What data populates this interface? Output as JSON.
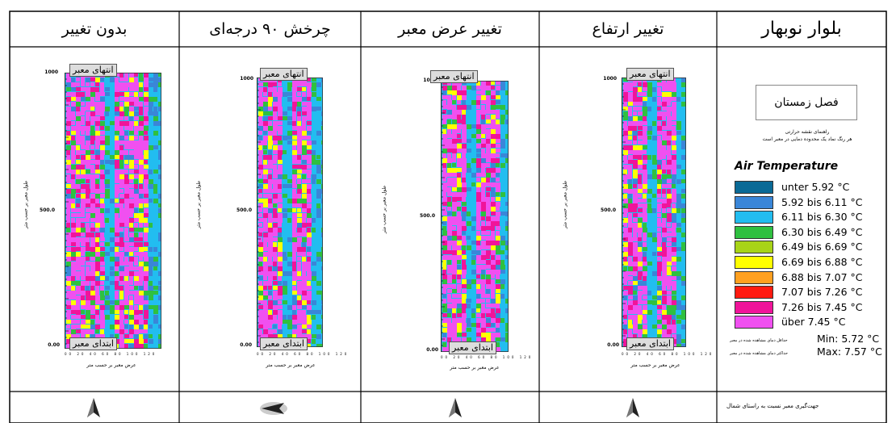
{
  "headers": {
    "street": "بلوار نوبهار",
    "height_change": "تغییر ارتفاع",
    "width_change": "تغییر عرض معبر",
    "rotation": "چرخش ۹۰ درجه‌ای",
    "no_change": "بدون تغییر"
  },
  "plot_labels": {
    "end_tag": "انتهای معبر",
    "start_tag": "ابتدای معبر",
    "x_axis_label": "عرض معبر بر حسب متر",
    "y_axis_label": "طول معبر بر حسب متر",
    "y_ticks": [
      "1000",
      "500.0",
      "0.00"
    ],
    "x_ticks": "00 20 40 60 80 100 120"
  },
  "legend": {
    "season": "فصل زمستان",
    "guide_title": "راهنمای نقشه حرارتی",
    "guide_desc": "هر رنگ نماد یک محدوده دمایی در معبر است",
    "title": "Air Temperature",
    "items": [
      {
        "label": "unter  5.92 °C",
        "color": "#0a6a96"
      },
      {
        "label": "5.92  bis  6.11 °C",
        "color": "#3a86d8"
      },
      {
        "label": "6.11  bis  6.30 °C",
        "color": "#22bdf0"
      },
      {
        "label": "6.30  bis  6.49 °C",
        "color": "#2fc040"
      },
      {
        "label": "6.49  bis  6.69 °C",
        "color": "#a8d418"
      },
      {
        "label": "6.69  bis  6.88 °C",
        "color": "#ffff00"
      },
      {
        "label": "6.88  bis  7.07 °C",
        "color": "#ffa020"
      },
      {
        "label": "7.07  bis  7.26 °C",
        "color": "#ff1a10"
      },
      {
        "label": "7.26  bis  7.45 °C",
        "color": "#f0149a"
      },
      {
        "label": "über  7.45 °C",
        "color": "#f050f0"
      }
    ],
    "min_label": "Min:  5.72 °C",
    "max_label": "Max:  7.57 °C",
    "min_note": "حداقل دمای مشاهده شده در معبر",
    "max_note": "حداکثر دمای مشاهده شده در معبر"
  },
  "north_note": "جهت‌گیری معبر نسبت به راستای شمال"
}
